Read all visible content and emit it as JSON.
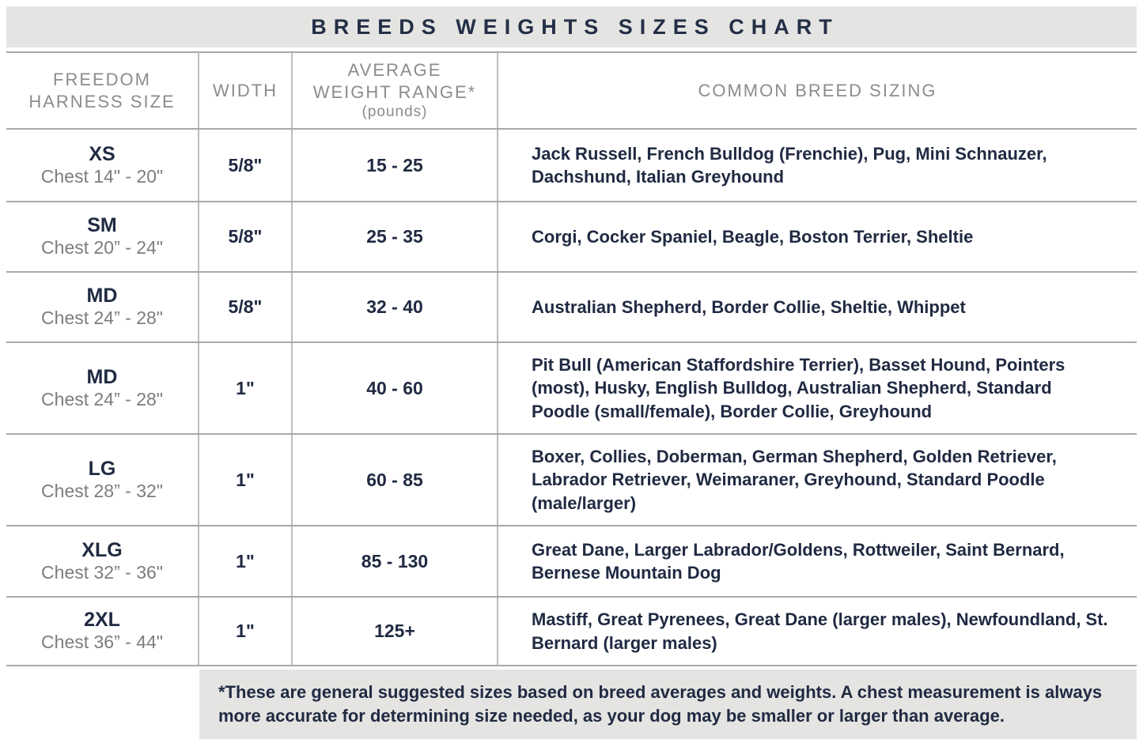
{
  "title": "BREEDS WEIGHTS SIZES CHART",
  "colors": {
    "text_navy": "#202a42",
    "text_gray": "#7d7d7d",
    "header_gray": "#8c8c8c",
    "band_gray": "#e4e4e2",
    "border_gray": "#a9a9a9"
  },
  "header": {
    "col1_line1": "FREEDOM",
    "col1_line2": "HARNESS SIZE",
    "col2": "WIDTH",
    "col3_line1": "AVERAGE",
    "col3_line2": "WEIGHT RANGE*",
    "col3_sub": "(pounds)",
    "col4": "COMMON BREED SIZING"
  },
  "chart_data": {
    "type": "table",
    "title": "BREEDS WEIGHTS SIZES CHART",
    "columns": [
      "FREEDOM HARNESS SIZE",
      "WIDTH",
      "AVERAGE WEIGHT RANGE* (pounds)",
      "COMMON BREED SIZING"
    ],
    "rows": [
      {
        "size": "XS",
        "chest": "Chest 14\" - 20\"",
        "width": "5/8\"",
        "weight": "15 - 25",
        "breeds": "Jack Russell, French Bulldog (Frenchie), Pug, Mini Schnauzer, Dachshund, Italian Greyhound"
      },
      {
        "size": "SM",
        "chest": "Chest 20” - 24\"",
        "width": "5/8\"",
        "weight": "25 - 35",
        "breeds": "Corgi, Cocker Spaniel, Beagle, Boston Terrier, Sheltie"
      },
      {
        "size": "MD",
        "chest": "Chest 24” - 28\"",
        "width": "5/8\"",
        "weight": "32 - 40",
        "breeds": "Australian Shepherd, Border Collie, Sheltie, Whippet"
      },
      {
        "size": "MD",
        "chest": "Chest 24” - 28\"",
        "width": "1\"",
        "weight": "40 - 60",
        "breeds": "Pit Bull (American Staffordshire Terrier), Basset Hound, Pointers (most), Husky, English Bulldog, Australian Shepherd, Standard Poodle (small/female), Border Collie, Greyhound"
      },
      {
        "size": "LG",
        "chest": "Chest 28” - 32\"",
        "width": "1\"",
        "weight": "60 - 85",
        "breeds": "Boxer, Collies, Doberman, German Shepherd, Golden Retriever, Labrador Retriever, Weimaraner, Greyhound, Standard Poodle (male/larger)"
      },
      {
        "size": "XLG",
        "chest": "Chest 32” - 36\"",
        "width": "1\"",
        "weight": "85 - 130",
        "breeds": "Great Dane, Larger Labrador/Goldens, Rottweiler, Saint Bernard, Bernese Mountain Dog"
      },
      {
        "size": "2XL",
        "chest": "Chest 36” - 44\"",
        "width": "1\"",
        "weight": "125+",
        "breeds": "Mastiff, Great Pyrenees, Great Dane (larger males), Newfoundland, St. Bernard (larger males)"
      }
    ],
    "footnote": "*These are general suggested sizes based on breed averages and weights.  A chest measurement is always more accurate for determining size needed, as your dog may be smaller or larger than average."
  }
}
